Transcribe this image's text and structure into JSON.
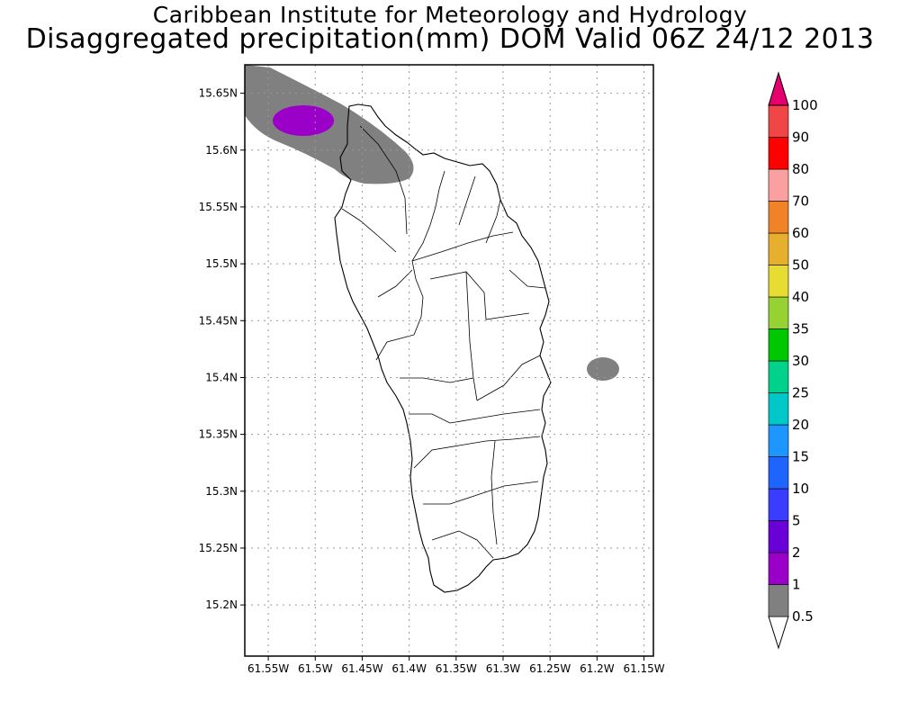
{
  "title_line1": "Caribbean Institute for Meteorology and Hydrology",
  "title_line2": "Disaggregated precipitation(mm) DOM Valid 06Z 24/12 2013",
  "map": {
    "lon_ticks": [
      "61.55W",
      "61.5W",
      "61.45W",
      "61.4W",
      "61.35W",
      "61.3W",
      "61.25W",
      "61.2W",
      "61.15W"
    ],
    "lon_values": [
      -61.55,
      -61.5,
      -61.45,
      -61.4,
      -61.35,
      -61.3,
      -61.25,
      -61.2,
      -61.15
    ],
    "lat_ticks": [
      "15.65N",
      "15.6N",
      "15.55N",
      "15.5N",
      "15.45N",
      "15.4N",
      "15.35N",
      "15.3N",
      "15.25N",
      "15.2N"
    ],
    "lat_values": [
      15.65,
      15.6,
      15.55,
      15.5,
      15.45,
      15.4,
      15.35,
      15.3,
      15.25,
      15.2
    ],
    "lon_range": [
      -61.575,
      -61.14
    ],
    "lat_range": [
      15.155,
      15.675
    ],
    "grid": true,
    "colors": {
      "gray_precip": "#808080",
      "purple_precip": "#9b00c8",
      "land_fill": "#ffffff",
      "outline": "#000000"
    }
  },
  "colorbar": {
    "labels": [
      "0.5",
      "1",
      "2",
      "5",
      "10",
      "15",
      "20",
      "25",
      "30",
      "35",
      "40",
      "50",
      "60",
      "70",
      "80",
      "90",
      "100"
    ],
    "colors": [
      "#808080",
      "#9b00c8",
      "#6a00d8",
      "#3a3cff",
      "#1e64ff",
      "#1e96ff",
      "#00c8c8",
      "#00d28c",
      "#00c800",
      "#96d232",
      "#e6dc32",
      "#e6af2d",
      "#f08228",
      "#faa0a0",
      "#ff0000",
      "#f04646",
      "#e6006e"
    ],
    "under_color": "#ffffff",
    "over_color": "#e6006e"
  }
}
